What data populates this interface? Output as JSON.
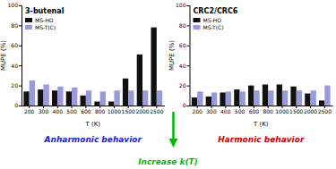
{
  "chart_data": [
    {
      "type": "bar",
      "title": "3-butenal",
      "xlabel": "T (K)",
      "ylabel": "MUPE (%)",
      "categories": [
        "200",
        "300",
        "400",
        "500",
        "600",
        "800",
        "1000",
        "1500",
        "2000",
        "2500"
      ],
      "series": [
        {
          "name": "MS-HO",
          "color": "#111111",
          "values": [
            14,
            16,
            15,
            14,
            10,
            4,
            4,
            27,
            51,
            78
          ]
        },
        {
          "name": "MS-T(C)",
          "color": "#9999dd",
          "values": [
            25,
            21,
            19,
            18,
            15,
            14,
            15,
            15,
            15,
            15
          ]
        }
      ],
      "ylim": [
        0,
        100
      ],
      "yticks": [
        0,
        20,
        40,
        60,
        80,
        100
      ],
      "legend": "upper left",
      "annotations": [
        {
          "text": "Anharmonic behavior",
          "color": "#2222cc"
        }
      ]
    },
    {
      "type": "bar",
      "title": "CRC2/CRC6",
      "xlabel": "T (K)",
      "ylabel": "MUPE (%)",
      "categories": [
        "200",
        "300",
        "400",
        "500",
        "600",
        "800",
        "1000",
        "1500",
        "2000",
        "2500"
      ],
      "series": [
        {
          "name": "MS-HO",
          "color": "#111111",
          "values": [
            8,
            9,
            13,
            16,
            20,
            21,
            21,
            19,
            12,
            5
          ]
        },
        {
          "name": "MS-T(C)",
          "color": "#9999dd",
          "values": [
            14,
            13,
            14,
            14,
            15,
            15,
            15,
            15,
            15,
            20
          ]
        }
      ],
      "ylim": [
        0,
        100
      ],
      "yticks": [
        0,
        20,
        40,
        60,
        80,
        100
      ],
      "legend": "upper left",
      "annotations": [
        {
          "text": "Harmonic behavior",
          "color": "#cc0000"
        },
        {
          "text": "Increase k(T)",
          "color": "#00bb00"
        }
      ]
    }
  ]
}
